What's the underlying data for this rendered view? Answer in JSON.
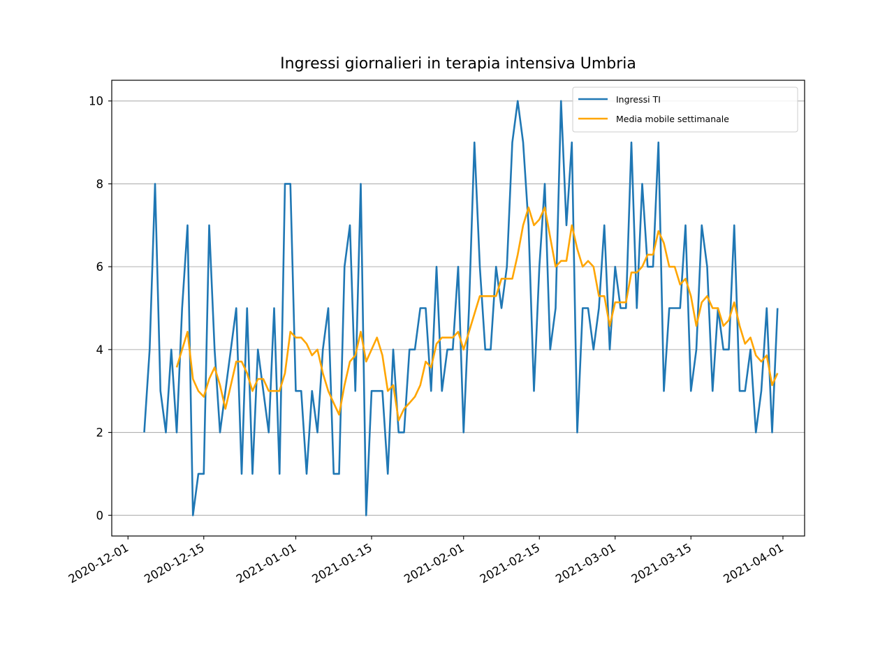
{
  "chart_data": {
    "type": "line",
    "title": "Ingressi giornalieri in terapia intensiva Umbria",
    "xlabel": "",
    "ylabel": "",
    "start_date": "2020-12-04",
    "ylim": [
      -0.5,
      10.5
    ],
    "yticks": [
      0,
      2,
      4,
      6,
      8,
      10
    ],
    "xlim": [
      "2020-11-28",
      "2021-04-05"
    ],
    "xticks": [
      "2020-12-01",
      "2020-12-15",
      "2021-01-01",
      "2021-01-15",
      "2021-02-01",
      "2021-02-15",
      "2021-03-01",
      "2021-03-15",
      "2021-04-01"
    ],
    "grid": "y",
    "legend_position": "upper right",
    "series": [
      {
        "name": "Ingressi TI",
        "color": "#1f77b4",
        "values": [
          2,
          4,
          8,
          3,
          2,
          4,
          2,
          5,
          7,
          0,
          1,
          1,
          7,
          4,
          2,
          3,
          4,
          5,
          1,
          5,
          1,
          4,
          3,
          2,
          5,
          1,
          8,
          8,
          3,
          3,
          1,
          3,
          2,
          4,
          5,
          1,
          1,
          6,
          7,
          3,
          8,
          0,
          3,
          3,
          3,
          1,
          4,
          2,
          2,
          4,
          4,
          5,
          5,
          3,
          6,
          3,
          4,
          4,
          6,
          2,
          5,
          9,
          6,
          4,
          4,
          6,
          5,
          6,
          9,
          10,
          9,
          7,
          3,
          6,
          8,
          4,
          5,
          10,
          7,
          9,
          2,
          5,
          5,
          4,
          5,
          7,
          4,
          6,
          5,
          5,
          9,
          5,
          8,
          6,
          6,
          9,
          3,
          5,
          5,
          5,
          7,
          3,
          4,
          7,
          6,
          3,
          5,
          4,
          4,
          7,
          3,
          3,
          4,
          2,
          3,
          5,
          2,
          5
        ]
      },
      {
        "name": "Media mobile settimanale",
        "color": "#ffa500",
        "values": [
          null,
          null,
          null,
          null,
          null,
          null,
          3.57,
          4.0,
          4.43,
          3.29,
          3.0,
          2.86,
          3.29,
          3.57,
          3.14,
          2.57,
          3.14,
          3.71,
          3.71,
          3.43,
          3.0,
          3.29,
          3.29,
          3.0,
          3.0,
          3.0,
          3.43,
          4.43,
          4.29,
          4.29,
          4.14,
          3.86,
          4.0,
          3.43,
          3.0,
          2.71,
          2.43,
          3.14,
          3.71,
          3.86,
          4.43,
          3.71,
          4.0,
          4.29,
          3.86,
          3.0,
          3.14,
          2.29,
          2.57,
          2.71,
          2.86,
          3.14,
          3.71,
          3.57,
          4.14,
          4.29,
          4.29,
          4.29,
          4.43,
          4.0,
          4.43,
          4.86,
          5.29,
          5.29,
          5.29,
          5.29,
          5.71,
          5.71,
          5.71,
          6.29,
          7.0,
          7.43,
          7.0,
          7.14,
          7.43,
          6.71,
          6.0,
          6.14,
          6.14,
          7.0,
          6.43,
          6.0,
          6.14,
          6.0,
          5.29,
          5.29,
          4.57,
          5.14,
          5.14,
          5.14,
          5.86,
          5.86,
          6.0,
          6.29,
          6.29,
          6.86,
          6.57,
          6.0,
          6.0,
          5.57,
          5.71,
          5.29,
          4.57,
          5.14,
          5.29,
          5.0,
          5.0,
          4.57,
          4.71,
          5.14,
          4.57,
          4.14,
          4.29,
          3.86,
          3.71,
          3.86,
          3.14,
          3.43
        ]
      }
    ]
  }
}
